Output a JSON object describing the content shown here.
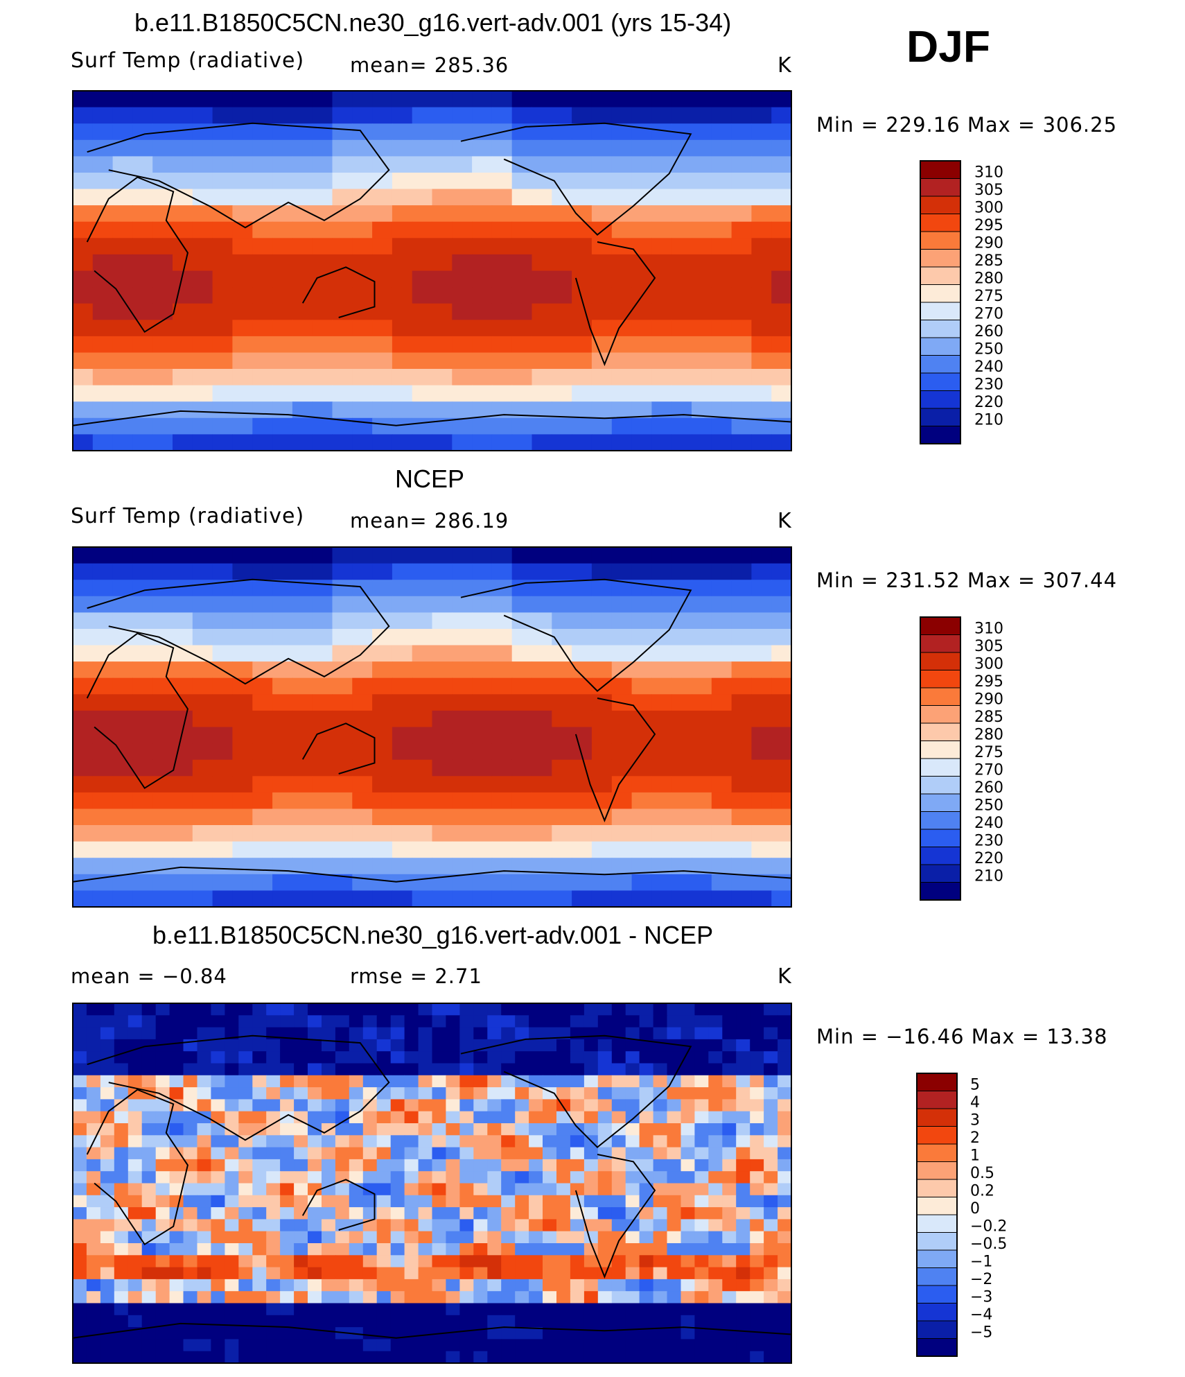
{
  "season": "DJF",
  "panels": [
    {
      "title": "b.e11.B1850C5CN.ne30_g16.vert-adv.001 (yrs 15-34)",
      "left_label": "Surf Temp (radiative)",
      "center_label": "mean=  285.36",
      "units": "K",
      "minmax": "Min  =  229.16  Max  =  306.25"
    },
    {
      "title": "NCEP",
      "left_label": "Surf Temp (radiative)",
      "center_label": "mean=  286.19",
      "units": "K",
      "minmax": "Min  =  231.52  Max  =  307.44"
    },
    {
      "title": "b.e11.B1850C5CN.ne30_g16.vert-adv.001 - NCEP",
      "left_label": "mean  =     −0.84",
      "center_label": "rmse  =     2.71",
      "units": "K",
      "minmax": "Min  =  −16.46  Max  =    13.38"
    }
  ],
  "chart_data": [
    {
      "type": "heatmap",
      "title": "b.e11.B1850C5CN.ne30_g16.vert-adv.001 (yrs 15-34)",
      "variable": "Surf Temp (radiative)",
      "units": "K",
      "mean": 285.36,
      "min": 229.16,
      "max": 306.25,
      "colorbar_labels": [
        "310",
        "305",
        "300",
        "295",
        "290",
        "285",
        "280",
        "275",
        "270",
        "260",
        "250",
        "240",
        "230",
        "220",
        "210"
      ],
      "colorbar_colors": [
        "#8b0000",
        "#b22222",
        "#d43008",
        "#f2470f",
        "#fa7a3a",
        "#fca276",
        "#fdc9ab",
        "#fdebd8",
        "#d9e8fa",
        "#b0cdf8",
        "#7fa9f5",
        "#4f82f2",
        "#2b5df0",
        "#1535d4",
        "#0a1fa8",
        "#00007f"
      ],
      "grid": false
    },
    {
      "type": "heatmap",
      "title": "NCEP",
      "variable": "Surf Temp (radiative)",
      "units": "K",
      "mean": 286.19,
      "min": 231.52,
      "max": 307.44,
      "colorbar_labels": [
        "310",
        "305",
        "300",
        "295",
        "290",
        "285",
        "280",
        "275",
        "270",
        "260",
        "250",
        "240",
        "230",
        "220",
        "210"
      ],
      "colorbar_colors": [
        "#8b0000",
        "#b22222",
        "#d43008",
        "#f2470f",
        "#fa7a3a",
        "#fca276",
        "#fdc9ab",
        "#fdebd8",
        "#d9e8fa",
        "#b0cdf8",
        "#7fa9f5",
        "#4f82f2",
        "#2b5df0",
        "#1535d4",
        "#0a1fa8",
        "#00007f"
      ],
      "grid": false
    },
    {
      "type": "heatmap",
      "title": "b.e11.B1850C5CN.ne30_g16.vert-adv.001 - NCEP",
      "units": "K",
      "mean": -0.84,
      "rmse": 2.71,
      "min": -16.46,
      "max": 13.38,
      "colorbar_labels": [
        "5",
        "4",
        "3",
        "2",
        "1",
        "0.5",
        "0.2",
        "0",
        "−0.2",
        "−0.5",
        "−1",
        "−2",
        "−3",
        "−4",
        "−5"
      ],
      "colorbar_colors": [
        "#8b0000",
        "#b22222",
        "#d43008",
        "#f2470f",
        "#fa7a3a",
        "#fca276",
        "#fdc9ab",
        "#fdebd8",
        "#d9e8fa",
        "#b0cdf8",
        "#7fa9f5",
        "#4f82f2",
        "#2b5df0",
        "#1535d4",
        "#0a1fa8",
        "#00007f"
      ],
      "grid": false
    }
  ]
}
